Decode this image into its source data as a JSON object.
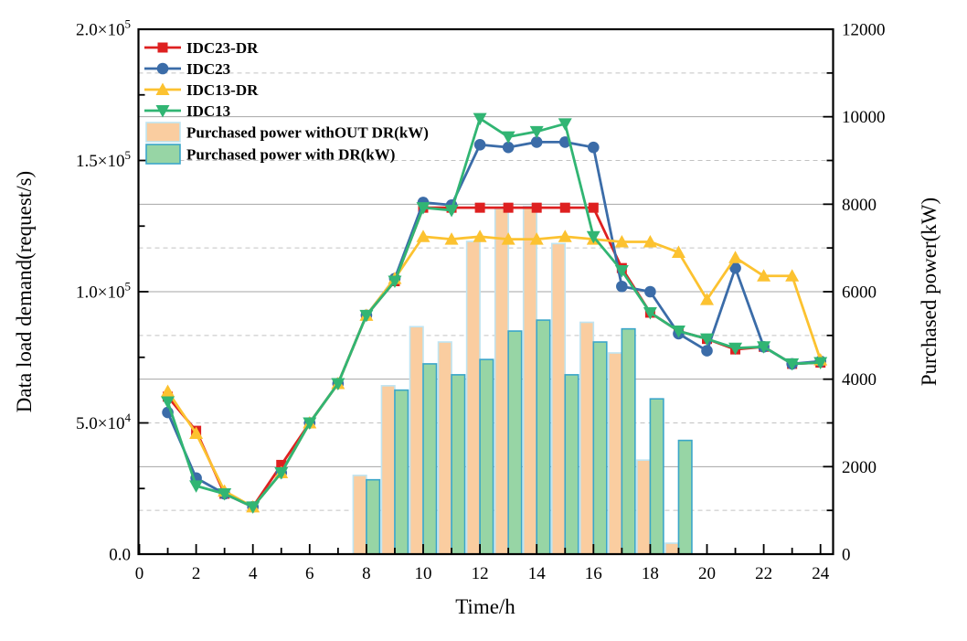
{
  "chart_data": {
    "type": "line+bar",
    "xlabel": "Time/h",
    "ylabel_left": "Data load demand(request/s)",
    "ylabel_right": "Purchased power(kW)",
    "xlim": [
      -0.05,
      24.45
    ],
    "ylim_left": [
      0,
      200000
    ],
    "ylim_right": [
      0,
      12000
    ],
    "grid": {
      "solid_every_kw": 2000,
      "dashed_every_kw": 1000,
      "legend_position": "top-left",
      "legend_frame": false
    },
    "x_ticks": [
      {
        "value": 0,
        "label": "0"
      },
      {
        "value": 1,
        "label": ""
      },
      {
        "value": 2,
        "label": "2"
      },
      {
        "value": 3,
        "label": ""
      },
      {
        "value": 4,
        "label": "4"
      },
      {
        "value": 5,
        "label": ""
      },
      {
        "value": 6,
        "label": "6"
      },
      {
        "value": 7,
        "label": ""
      },
      {
        "value": 8,
        "label": "8"
      },
      {
        "value": 9,
        "label": ""
      },
      {
        "value": 10,
        "label": "10"
      },
      {
        "value": 11,
        "label": ""
      },
      {
        "value": 12,
        "label": "12"
      },
      {
        "value": 13,
        "label": ""
      },
      {
        "value": 14,
        "label": "14"
      },
      {
        "value": 15,
        "label": ""
      },
      {
        "value": 16,
        "label": "16"
      },
      {
        "value": 17,
        "label": ""
      },
      {
        "value": 18,
        "label": "18"
      },
      {
        "value": 19,
        "label": ""
      },
      {
        "value": 20,
        "label": "20"
      },
      {
        "value": 21,
        "label": ""
      },
      {
        "value": 22,
        "label": "22"
      },
      {
        "value": 23,
        "label": ""
      },
      {
        "value": 24,
        "label": "24"
      }
    ],
    "left_ticks": [
      {
        "value": 0,
        "label": "0.0",
        "exp": ""
      },
      {
        "value": 50000,
        "label": "5.0×10",
        "exp": "4"
      },
      {
        "value": 100000,
        "label": "1.0×10",
        "exp": "5"
      },
      {
        "value": 150000,
        "label": "1.5×10",
        "exp": "5"
      },
      {
        "value": 200000,
        "label": "2.0×10",
        "exp": "5"
      }
    ],
    "right_ticks": [
      {
        "value": 0,
        "label": "0"
      },
      {
        "value": 2000,
        "label": "2000"
      },
      {
        "value": 4000,
        "label": "4000"
      },
      {
        "value": 6000,
        "label": "6000"
      },
      {
        "value": 8000,
        "label": "8000"
      },
      {
        "value": 10000,
        "label": "10000"
      },
      {
        "value": 12000,
        "label": "12000"
      }
    ],
    "hours": [
      1,
      2,
      3,
      4,
      5,
      6,
      7,
      8,
      9,
      10,
      11,
      12,
      13,
      14,
      15,
      16,
      17,
      18,
      19,
      20,
      21,
      22,
      23,
      24
    ],
    "line_series": [
      {
        "name": "IDC23-DR",
        "color": "#DE2020",
        "marker": "square",
        "axis": "left",
        "values": [
          60000,
          47000,
          23000,
          18000,
          34000,
          50000,
          65000,
          91000,
          104000,
          132000,
          132000,
          132000,
          132000,
          132000,
          132000,
          132000,
          109000,
          92000,
          85000,
          82000,
          78000,
          79000,
          72500,
          73000
        ]
      },
      {
        "name": "IDC23",
        "color": "#3B6CA8",
        "marker": "circle",
        "axis": "left",
        "values": [
          54000,
          29000,
          23000,
          18000,
          31000,
          50000,
          65000,
          91000,
          105000,
          134000,
          133000,
          156000,
          155000,
          157000,
          157000,
          155000,
          102000,
          100000,
          84000,
          77500,
          109000,
          79000,
          72500,
          73500
        ]
      },
      {
        "name": "IDC13-DR",
        "color": "#FCC230",
        "marker": "triangle-up",
        "axis": "left",
        "values": [
          62000,
          46000,
          24000,
          18000,
          31000,
          50000,
          65000,
          91000,
          105000,
          121000,
          120000,
          121000,
          120000,
          120000,
          121000,
          120000,
          119000,
          119000,
          115000,
          97000,
          113000,
          106000,
          106000,
          74000
        ]
      },
      {
        "name": "IDC13",
        "color": "#31B573",
        "marker": "triangle-down",
        "axis": "left",
        "values": [
          58000,
          26000,
          23000,
          18000,
          31000,
          50000,
          65000,
          91000,
          104000,
          132000,
          131000,
          166000,
          159000,
          161000,
          164000,
          121000,
          108000,
          92000,
          85000,
          82000,
          78500,
          79000,
          72500,
          73000
        ]
      }
    ],
    "bar_series": {
      "axis": "right",
      "hours": [
        8,
        9,
        10,
        11,
        12,
        13,
        14,
        15,
        16,
        17,
        18,
        19
      ],
      "series": [
        {
          "name": "Purchased power withOUT DR(kW)",
          "fill": "#FACDA0",
          "edge": "#BFE4F1",
          "values": [
            1800,
            3850,
            5200,
            4850,
            7150,
            7900,
            7950,
            7100,
            5300,
            4600,
            2150,
            250
          ]
        },
        {
          "name": "Purchased power with DR(kW)",
          "fill": "#97D5A5",
          "edge": "#3BA6C9",
          "values": [
            1700,
            3750,
            4350,
            4100,
            4450,
            5100,
            5350,
            4100,
            4850,
            5150,
            3550,
            2600
          ]
        }
      ]
    }
  }
}
